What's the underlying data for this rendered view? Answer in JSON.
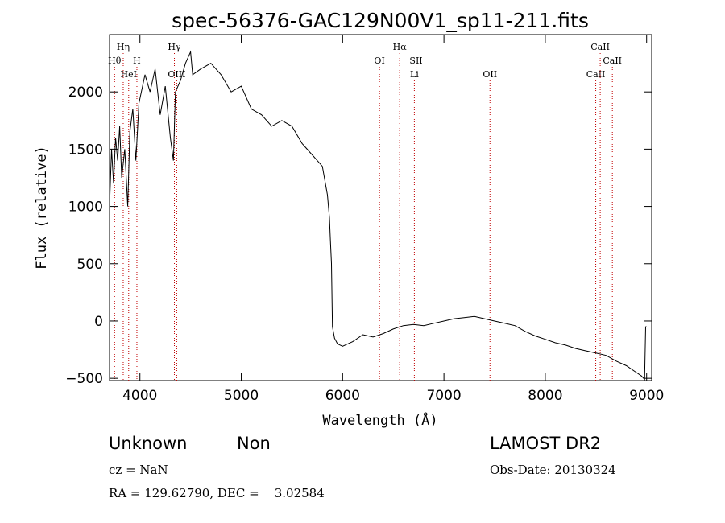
{
  "chart_data": {
    "type": "line",
    "title": "spec-56376-GAC129N00V1_sp11-211.fits",
    "xlabel": "Wavelength (Å)",
    "ylabel": "Flux (relative)",
    "xlim": [
      3700,
      9050
    ],
    "ylim": [
      -520,
      2500
    ],
    "x_ticks": [
      4000,
      5000,
      6000,
      7000,
      8000,
      9000
    ],
    "y_ticks": [
      -500,
      0,
      500,
      1000,
      1500,
      2000
    ],
    "grid": false,
    "series": [
      {
        "x": [
          3700,
          3720,
          3740,
          3760,
          3780,
          3800,
          3820,
          3850,
          3880,
          3900,
          3930,
          3960,
          3990,
          4050,
          4100,
          4150,
          4200,
          4250,
          4300,
          4330,
          4350,
          4400,
          4450,
          4500,
          4520,
          4600,
          4700,
          4800,
          4900,
          5000,
          5100,
          5200,
          5300,
          5400,
          5500,
          5600,
          5700,
          5750,
          5800,
          5850,
          5870,
          5880,
          5890,
          5900,
          5920,
          5950,
          6000,
          6100,
          6200,
          6300,
          6400,
          6500,
          6600,
          6700,
          6800,
          6900,
          7000,
          7100,
          7200,
          7300,
          7400,
          7500,
          7600,
          7700,
          7800,
          7900,
          8000,
          8100,
          8200,
          8300,
          8400,
          8500,
          8600,
          8700,
          8800,
          8900,
          8950,
          8980,
          8990,
          9000
        ],
        "y": [
          1000,
          1500,
          1200,
          1600,
          1400,
          1700,
          1250,
          1500,
          1000,
          1650,
          1850,
          1400,
          1900,
          2150,
          2000,
          2200,
          1800,
          2050,
          1600,
          1400,
          2000,
          2100,
          2250,
          2350,
          2150,
          2200,
          2250,
          2150,
          2000,
          2050,
          1850,
          1800,
          1700,
          1750,
          1700,
          1550,
          1450,
          1400,
          1350,
          1100,
          900,
          700,
          500,
          -50,
          -150,
          -200,
          -220,
          -180,
          -120,
          -140,
          -110,
          -70,
          -40,
          -30,
          -40,
          -20,
          0,
          20,
          30,
          40,
          20,
          0,
          -20,
          -40,
          -90,
          -130,
          -160,
          -190,
          -210,
          -240,
          -260,
          -280,
          -300,
          -350,
          -390,
          -450,
          -480,
          -510,
          -50,
          -50
        ]
      }
    ],
    "line_markers": [
      {
        "x": 3750,
        "label": "Hθ",
        "row": 2
      },
      {
        "x": 3835,
        "label": "Hη",
        "row": 1
      },
      {
        "x": 3889,
        "label": "HeI",
        "row": 3
      },
      {
        "x": 3970,
        "label": "H",
        "row": 2
      },
      {
        "x": 4340,
        "label": "Hγ",
        "row": 1
      },
      {
        "x": 4363,
        "label": "OIII",
        "row": 3
      },
      {
        "x": 6364,
        "label": "OI",
        "row": 2
      },
      {
        "x": 6563,
        "label": "Hα",
        "row": 1
      },
      {
        "x": 6708,
        "label": "Li",
        "row": 3
      },
      {
        "x": 6725,
        "label": "SII",
        "row": 2
      },
      {
        "x": 7454,
        "label": "OII",
        "row": 3
      },
      {
        "x": 8498,
        "label": "CaII",
        "row": 3
      },
      {
        "x": 8542,
        "label": "CaII",
        "row": 1
      },
      {
        "x": 8662,
        "label": "CaII",
        "row": 2
      }
    ]
  },
  "info": {
    "class_label": "Unknown",
    "subclass_label": "Non",
    "survey": "LAMOST DR2",
    "cz": "cz = NaN",
    "obs_date": "Obs-Date: 20130324",
    "coords": "RA = 129.62790, DEC =    3.02584"
  }
}
